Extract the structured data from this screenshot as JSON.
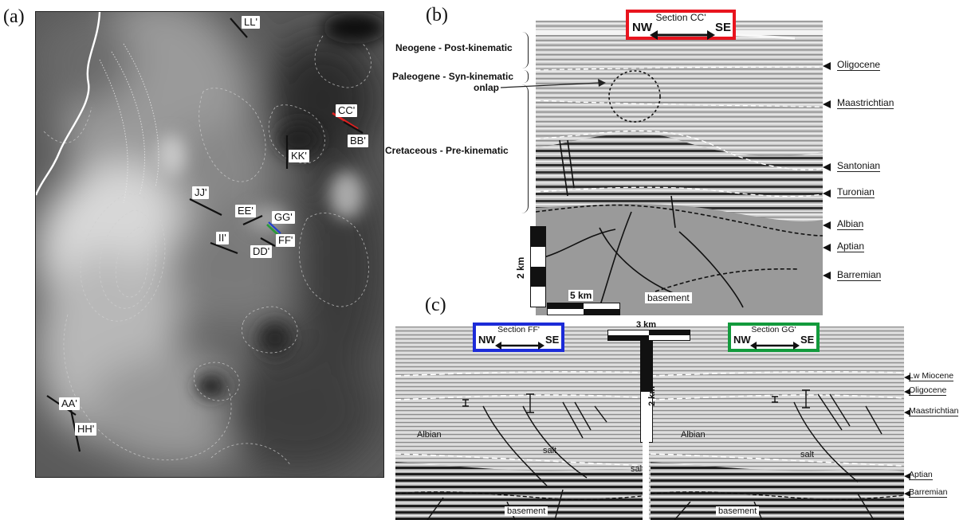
{
  "panel_letters": {
    "a": "(a)",
    "b": "(b)",
    "c": "(c)"
  },
  "map": {
    "section_labels": {
      "ll": "LL'",
      "cc": "CC'",
      "bb": "BB'",
      "kk": "KK'",
      "jj": "JJ'",
      "ee": "EE'",
      "gg": "GG'",
      "ff": "FF'",
      "ii": "II'",
      "dd": "DD'",
      "aa": "AA'",
      "hh": "HH'"
    },
    "colors": {
      "cc_line": "#e02020",
      "gg_line": "#2a9a3a",
      "ff_line": "#2040d0",
      "coast": "#ffffff"
    }
  },
  "panel_b": {
    "box_title": "Section CC'",
    "nw": "NW",
    "se": "SE",
    "box_color": "#e8141e",
    "brackets": {
      "neogene": "Neogene - Post-kinematic",
      "paleogene": "Paleogene - Syn-kinematic",
      "onlap": "onlap",
      "cretaceous": "Cretaceous - Pre-kinematic"
    },
    "horizons": {
      "oligocene": "Oligocene",
      "maastrichtian": "Maastrichtian",
      "santonian": "Santonian",
      "turonian": "Turonian",
      "albian": "Albian",
      "aptian": "Aptian",
      "barremian": "Barremian"
    },
    "vertical_scale": "2 km",
    "horizontal_scale": "5 km",
    "basement": "basement"
  },
  "panel_c": {
    "ff_box": {
      "title": "Section FF'",
      "nw": "NW",
      "se": "SE",
      "color": "#1c2bd8"
    },
    "gg_box": {
      "title": "Section GG'",
      "nw": "NW",
      "se": "SE",
      "color": "#129a3c"
    },
    "horizontal_scale": "3 km",
    "vertical_scale": "2 km",
    "inner_labels": {
      "albian_left": "Albian",
      "salt_left": "salt",
      "salt_mid": "salt",
      "albian_right": "Albian",
      "salt_right": "salt",
      "basement_left": "basement",
      "basement_right": "basement"
    },
    "horizons": {
      "lw_miocene": "Lw Miocene",
      "oligocene": "Oligocene",
      "maastrichtian": "Maastrichtian",
      "aptian": "Aptian",
      "barremian": "Barremian"
    }
  }
}
